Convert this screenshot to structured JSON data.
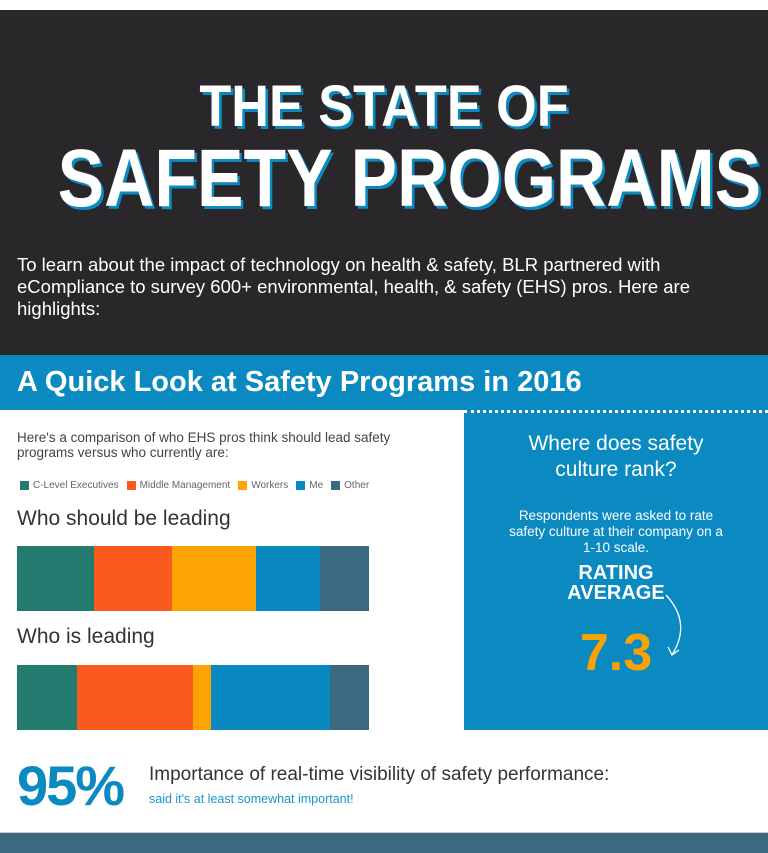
{
  "header": {
    "title_line1": "THE STATE OF",
    "title_line2": "SAFETY PROGRAMS",
    "intro": "To learn about the impact of technology on health & safety, BLR partnered with eCompliance to survey 600+ environmental, health, & safety (EHS) pros. Here are highlights:"
  },
  "section_title": "A Quick Look at Safety Programs in 2016",
  "chart_data": {
    "type": "stacked-bar",
    "description_text": "Here's a comparison of who EHS pros think should lead safety programs versus who currently are:",
    "categories": [
      "Who should be leading",
      "Who is leading"
    ],
    "legend_position": "top",
    "series": [
      {
        "name": "C-Level Executives",
        "color": "#237a6e",
        "values": [
          22,
          17
        ]
      },
      {
        "name": "Middle Management",
        "color": "#fb5a1e",
        "values": [
          22,
          33
        ]
      },
      {
        "name": "Workers",
        "color": "#fca404",
        "values": [
          24,
          5
        ]
      },
      {
        "name": "Me",
        "color": "#0989c0",
        "values": [
          18,
          34
        ]
      },
      {
        "name": "Other",
        "color": "#3b6a80",
        "values": [
          14,
          11
        ]
      }
    ],
    "unit": "percent"
  },
  "rating": {
    "question": "Where does safety culture rank?",
    "description": "Respondents were asked to rate safety culture at their company on a 1-10 scale.",
    "label": "RATING AVERAGE",
    "value": "7.3"
  },
  "stat": {
    "percent": "95%",
    "title": "Importance of real-time visibility of safety performance:",
    "subtitle": "said it's at least somewhat important!"
  },
  "colors": {
    "header_bg": "#29272a",
    "accent_blue": "#0a8ac0",
    "rating_value": "#f9a200",
    "footer": "#3b6a80"
  }
}
